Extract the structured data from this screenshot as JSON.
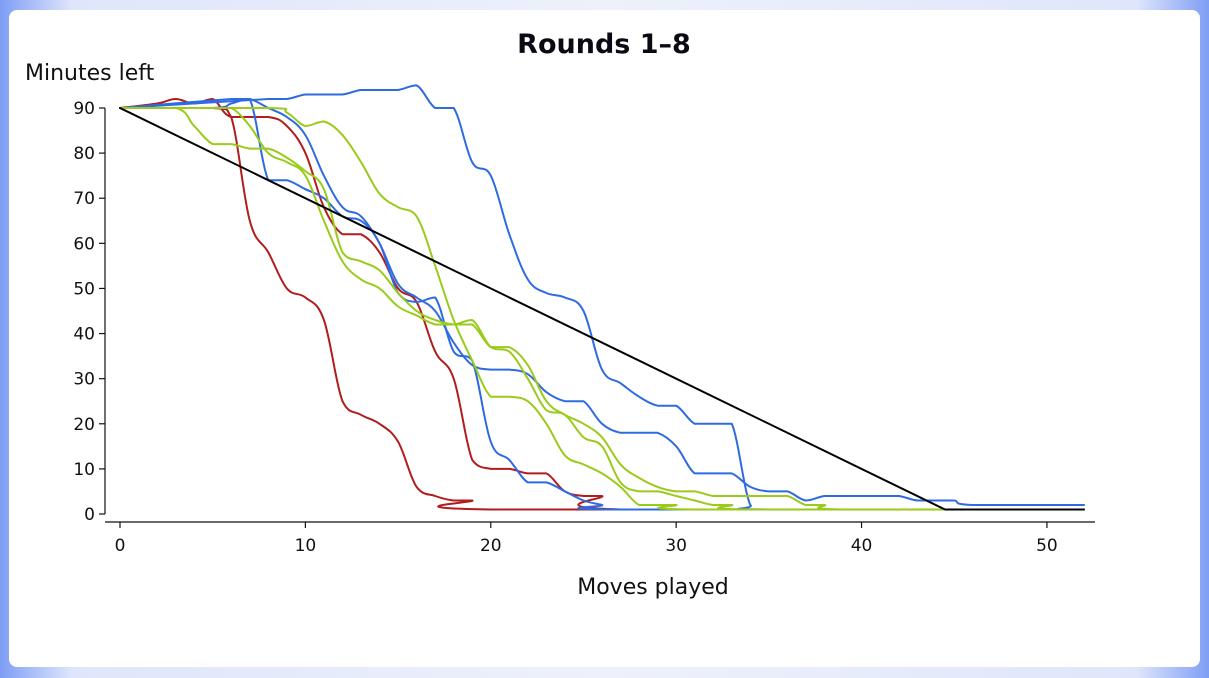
{
  "chart_data": {
    "type": "line",
    "title": "Rounds 1–8",
    "xlabel": "Moves played",
    "ylabel": "Minutes left",
    "xlim": [
      0,
      52
    ],
    "ylim": [
      0,
      90
    ],
    "xticks": [
      0,
      10,
      20,
      30,
      40,
      50
    ],
    "yticks": [
      0,
      10,
      20,
      30,
      40,
      50,
      60,
      70,
      80,
      90
    ],
    "grid": false,
    "reference_line": {
      "color": "#000000",
      "points": [
        [
          0,
          90
        ],
        [
          44.5,
          1
        ],
        [
          52,
          1
        ]
      ]
    },
    "series": [
      {
        "color": "#b11d1d",
        "points": [
          [
            0,
            90
          ],
          [
            2,
            91
          ],
          [
            3,
            92
          ],
          [
            4,
            91
          ],
          [
            5,
            92
          ],
          [
            6,
            88
          ],
          [
            8,
            88
          ],
          [
            9,
            86
          ],
          [
            10,
            80
          ],
          [
            11,
            68
          ],
          [
            12,
            62
          ],
          [
            13,
            62
          ],
          [
            14,
            58
          ],
          [
            15,
            50
          ],
          [
            16,
            47
          ],
          [
            17,
            36
          ],
          [
            18,
            30
          ],
          [
            19,
            12
          ],
          [
            20,
            10
          ],
          [
            21,
            10
          ],
          [
            22,
            9
          ],
          [
            23,
            9
          ],
          [
            24,
            5
          ],
          [
            25,
            4
          ],
          [
            26,
            4
          ],
          [
            27,
            1
          ],
          [
            52,
            1
          ]
        ]
      },
      {
        "color": "#b11d1d",
        "points": [
          [
            0,
            90
          ],
          [
            5,
            90
          ],
          [
            6,
            88
          ],
          [
            7,
            65
          ],
          [
            8,
            58
          ],
          [
            9,
            50
          ],
          [
            10,
            48
          ],
          [
            11,
            43
          ],
          [
            12,
            25
          ],
          [
            13,
            22
          ],
          [
            14,
            20
          ],
          [
            15,
            16
          ],
          [
            16,
            6
          ],
          [
            17,
            4
          ],
          [
            18,
            3
          ],
          [
            19,
            3
          ],
          [
            20,
            1
          ],
          [
            52,
            1
          ]
        ]
      },
      {
        "color": "#2f6be0",
        "points": [
          [
            0,
            90
          ],
          [
            5,
            90
          ],
          [
            6,
            91
          ],
          [
            7,
            92
          ],
          [
            8,
            74
          ],
          [
            9,
            74
          ],
          [
            10,
            72
          ],
          [
            11,
            70
          ],
          [
            12,
            66
          ],
          [
            13,
            65
          ],
          [
            14,
            60
          ],
          [
            15,
            49
          ],
          [
            16,
            47
          ],
          [
            17,
            48
          ],
          [
            18,
            36
          ],
          [
            19,
            34
          ],
          [
            20,
            16
          ],
          [
            21,
            12
          ],
          [
            22,
            7
          ],
          [
            23,
            7
          ],
          [
            24,
            5
          ],
          [
            25,
            3
          ],
          [
            26,
            2
          ],
          [
            27,
            1
          ],
          [
            52,
            1
          ]
        ]
      },
      {
        "color": "#2f6be0",
        "points": [
          [
            0,
            90
          ],
          [
            6,
            92
          ],
          [
            7,
            92
          ],
          [
            8,
            90
          ],
          [
            9,
            88
          ],
          [
            10,
            84
          ],
          [
            11,
            75
          ],
          [
            12,
            68
          ],
          [
            13,
            66
          ],
          [
            14,
            60
          ],
          [
            15,
            51
          ],
          [
            16,
            48
          ],
          [
            17,
            45
          ],
          [
            18,
            38
          ],
          [
            19,
            33
          ],
          [
            20,
            32
          ],
          [
            21,
            32
          ],
          [
            22,
            31
          ],
          [
            23,
            27
          ],
          [
            24,
            25
          ],
          [
            25,
            25
          ],
          [
            26,
            20
          ],
          [
            27,
            18
          ],
          [
            28,
            18
          ],
          [
            29,
            18
          ],
          [
            30,
            15
          ],
          [
            31,
            9
          ],
          [
            32,
            9
          ],
          [
            33,
            9
          ],
          [
            34,
            6
          ],
          [
            35,
            5
          ],
          [
            36,
            5
          ],
          [
            37,
            3
          ],
          [
            38,
            4
          ],
          [
            39,
            4
          ],
          [
            40,
            4
          ],
          [
            41,
            4
          ],
          [
            42,
            4
          ],
          [
            43,
            3
          ],
          [
            44,
            3
          ],
          [
            45,
            3
          ],
          [
            46,
            2
          ],
          [
            52,
            2
          ]
        ]
      },
      {
        "color": "#2f6be0",
        "points": [
          [
            0,
            90
          ],
          [
            8,
            92
          ],
          [
            9,
            92
          ],
          [
            10,
            93
          ],
          [
            11,
            93
          ],
          [
            12,
            93
          ],
          [
            13,
            94
          ],
          [
            14,
            94
          ],
          [
            15,
            94
          ],
          [
            16,
            95
          ],
          [
            17,
            90
          ],
          [
            18,
            90
          ],
          [
            19,
            78
          ],
          [
            20,
            75
          ],
          [
            21,
            62
          ],
          [
            22,
            52
          ],
          [
            23,
            49
          ],
          [
            24,
            48
          ],
          [
            25,
            45
          ],
          [
            26,
            32
          ],
          [
            27,
            29
          ],
          [
            28,
            26
          ],
          [
            29,
            24
          ],
          [
            30,
            24
          ],
          [
            31,
            20
          ],
          [
            32,
            20
          ],
          [
            33,
            20
          ],
          [
            34,
            2
          ],
          [
            35,
            1
          ],
          [
            52,
            1
          ]
        ]
      },
      {
        "color": "#9acb1b",
        "points": [
          [
            0,
            90
          ],
          [
            3,
            90
          ],
          [
            4,
            86
          ],
          [
            5,
            82
          ],
          [
            6,
            82
          ],
          [
            7,
            81
          ],
          [
            8,
            81
          ],
          [
            9,
            79
          ],
          [
            10,
            76
          ],
          [
            11,
            72
          ],
          [
            12,
            58
          ],
          [
            13,
            56
          ],
          [
            14,
            54
          ],
          [
            15,
            49
          ],
          [
            16,
            45
          ],
          [
            17,
            43
          ],
          [
            18,
            42
          ],
          [
            19,
            42
          ],
          [
            20,
            37
          ],
          [
            21,
            37
          ],
          [
            22,
            33
          ],
          [
            23,
            25
          ],
          [
            24,
            22
          ],
          [
            25,
            20
          ],
          [
            26,
            17
          ],
          [
            27,
            11
          ],
          [
            28,
            8
          ],
          [
            29,
            6
          ],
          [
            30,
            5
          ],
          [
            31,
            5
          ],
          [
            32,
            4
          ],
          [
            33,
            4
          ],
          [
            34,
            4
          ],
          [
            35,
            4
          ],
          [
            36,
            4
          ],
          [
            37,
            2
          ],
          [
            38,
            2
          ],
          [
            39,
            1
          ],
          [
            52,
            1
          ]
        ]
      },
      {
        "color": "#9acb1b",
        "points": [
          [
            0,
            90
          ],
          [
            3,
            90
          ],
          [
            4,
            90
          ],
          [
            5,
            90
          ],
          [
            6,
            90
          ],
          [
            7,
            86
          ],
          [
            8,
            80
          ],
          [
            9,
            78
          ],
          [
            10,
            75
          ],
          [
            11,
            65
          ],
          [
            12,
            56
          ],
          [
            13,
            52
          ],
          [
            14,
            50
          ],
          [
            15,
            46
          ],
          [
            16,
            44
          ],
          [
            17,
            42
          ],
          [
            18,
            42
          ],
          [
            19,
            43
          ],
          [
            20,
            37
          ],
          [
            21,
            36
          ],
          [
            22,
            30
          ],
          [
            23,
            23
          ],
          [
            24,
            22
          ],
          [
            25,
            17
          ],
          [
            26,
            15
          ],
          [
            27,
            7
          ],
          [
            28,
            5
          ],
          [
            29,
            5
          ],
          [
            30,
            4
          ],
          [
            31,
            3
          ],
          [
            32,
            2
          ],
          [
            33,
            2
          ],
          [
            34,
            1
          ],
          [
            52,
            1
          ]
        ]
      },
      {
        "color": "#9acb1b",
        "points": [
          [
            0,
            90
          ],
          [
            8,
            90
          ],
          [
            9,
            89
          ],
          [
            10,
            86
          ],
          [
            11,
            87
          ],
          [
            12,
            84
          ],
          [
            13,
            78
          ],
          [
            14,
            71
          ],
          [
            15,
            68
          ],
          [
            16,
            66
          ],
          [
            17,
            55
          ],
          [
            18,
            43
          ],
          [
            19,
            34
          ],
          [
            20,
            26
          ],
          [
            21,
            26
          ],
          [
            22,
            25
          ],
          [
            23,
            20
          ],
          [
            24,
            13
          ],
          [
            25,
            11
          ],
          [
            26,
            9
          ],
          [
            27,
            6
          ],
          [
            28,
            2
          ],
          [
            29,
            2
          ],
          [
            30,
            2
          ],
          [
            31,
            1
          ],
          [
            52,
            1
          ]
        ]
      }
    ]
  }
}
